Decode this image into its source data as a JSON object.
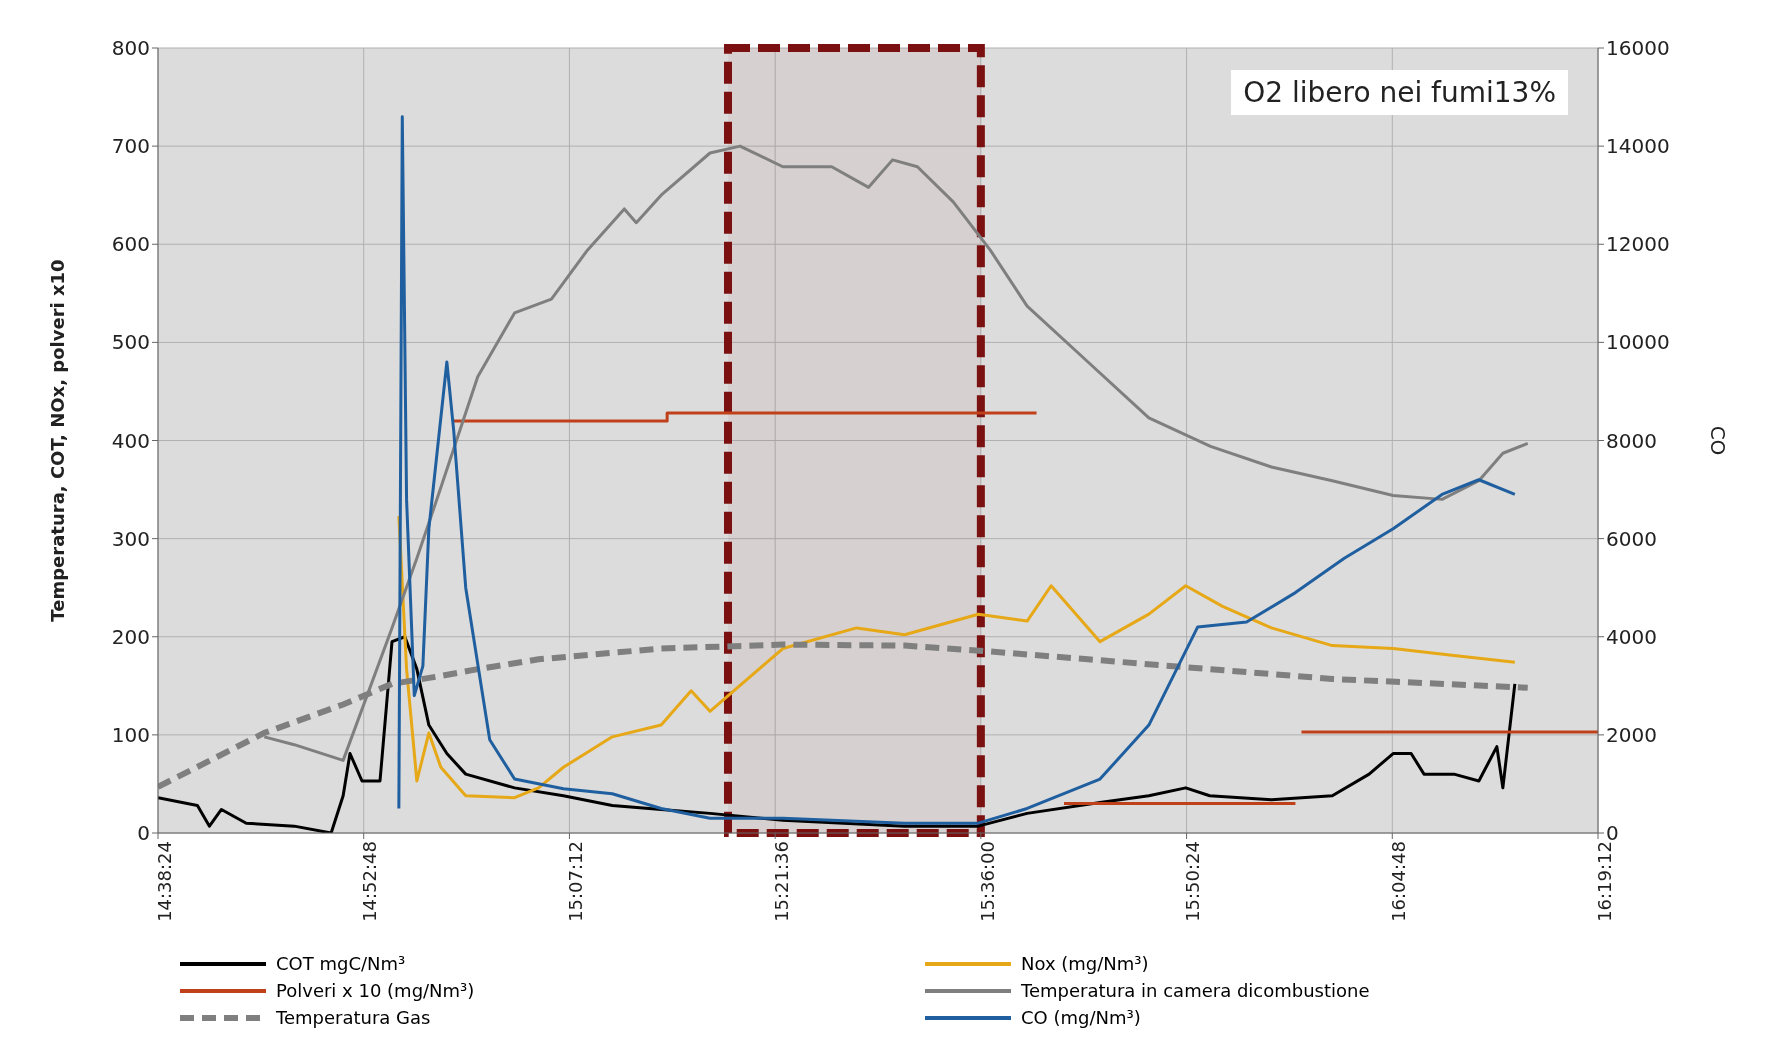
{
  "chart_data": {
    "type": "line",
    "ylabel": "Temperatura, COT, NOx, polveri x10",
    "y2label": "CO",
    "annotations": [
      "O2 libero nei fumi13%"
    ],
    "xlim": [
      14.64,
      16.32
    ],
    "xticks": [
      {
        "value": 14.64,
        "label": "14:38:24"
      },
      {
        "value": 14.88,
        "label": "14:52:48"
      },
      {
        "value": 15.12,
        "label": "15:07:12"
      },
      {
        "value": 15.36,
        "label": "15:21:36"
      },
      {
        "value": 15.6,
        "label": "15:36:00"
      },
      {
        "value": 15.84,
        "label": "15:50:24"
      },
      {
        "value": 16.08,
        "label": "16:04:48"
      },
      {
        "value": 16.32,
        "label": "16:19:12"
      }
    ],
    "ylim": [
      0,
      800
    ],
    "yticks": [
      0,
      100,
      200,
      300,
      400,
      500,
      600,
      700,
      800
    ],
    "y2lim": [
      0,
      16000
    ],
    "y2ticks": [
      0,
      2000,
      4000,
      6000,
      8000,
      10000,
      12000,
      14000,
      16000
    ],
    "grid": true,
    "legend": "bottom",
    "bands": [
      {
        "axis": "x",
        "from": 15.305,
        "to": 15.6,
        "color": "#7b1010"
      }
    ],
    "series": [
      {
        "name": "COT mgC/Nm³",
        "color": "#000000",
        "x": [
          14.64,
          14.686,
          14.7,
          14.714,
          14.743,
          14.799,
          14.842,
          14.856,
          14.864,
          14.878,
          14.899,
          14.913,
          14.928,
          14.942,
          14.956,
          14.977,
          14.999,
          15.056,
          15.113,
          15.17,
          15.227,
          15.284,
          15.369,
          15.511,
          15.597,
          15.654,
          15.739,
          15.796,
          15.839,
          15.867,
          15.939,
          16.01,
          16.053,
          16.081,
          16.102,
          16.117,
          16.152,
          16.181,
          16.202,
          16.209,
          16.223
        ],
        "values": [
          36,
          28,
          7,
          24,
          10,
          7,
          0,
          38,
          81,
          53,
          53,
          195,
          200,
          167,
          110,
          81,
          60,
          46,
          38,
          28,
          24,
          20,
          13,
          7,
          7,
          20,
          31,
          38,
          46,
          38,
          34,
          38,
          60,
          81,
          81,
          60,
          60,
          53,
          88,
          46,
          152
        ]
      },
      {
        "name": "Nox (mg/Nm³)",
        "color": "#e6a817",
        "x": [
          14.921,
          14.93,
          14.942,
          14.956,
          14.97,
          14.999,
          15.056,
          15.084,
          15.113,
          15.17,
          15.227,
          15.262,
          15.284,
          15.369,
          15.455,
          15.511,
          15.597,
          15.654,
          15.682,
          15.739,
          15.796,
          15.839,
          15.882,
          15.939,
          16.01,
          16.081,
          16.152,
          16.223
        ],
        "values": [
          323,
          167,
          53,
          102,
          67,
          38,
          36,
          46,
          67,
          98,
          110,
          145,
          124,
          188,
          209,
          202,
          223,
          216,
          252,
          195,
          223,
          252,
          231,
          209,
          191,
          188,
          181,
          174
        ]
      },
      {
        "name": "Polveri x 10 (mg/Nm³)",
        "color": "#c0401a",
        "x": [
          14.985,
          15.234,
          15.234,
          15.665,
          15.68,
          15.697,
          15.967,
          15.97,
          15.974,
          16.32
        ],
        "values": [
          420,
          420,
          428,
          428,
          null,
          30,
          30,
          null,
          103,
          103
        ]
      },
      {
        "name": "Temperatura in camera dicombustione",
        "color": "#7f7f7f",
        "x": [
          14.764,
          14.799,
          14.856,
          14.913,
          14.942,
          14.97,
          15.013,
          15.056,
          15.099,
          15.141,
          15.184,
          15.198,
          15.227,
          15.284,
          15.319,
          15.369,
          15.426,
          15.469,
          15.497,
          15.526,
          15.568,
          15.611,
          15.654,
          15.725,
          15.796,
          15.868,
          15.939,
          16.01,
          16.081,
          16.138,
          16.181,
          16.209,
          16.238
        ],
        "values": [
          98,
          90,
          74,
          209,
          280,
          352,
          465,
          530,
          544,
          594,
          636,
          622,
          650,
          693,
          700,
          679,
          679,
          658,
          686,
          679,
          643,
          594,
          537,
          480,
          423,
          394,
          373,
          359,
          344,
          340,
          359,
          387,
          397
        ]
      },
      {
        "name": "Temperatura Gas",
        "color": "#7f7f7f",
        "line_style": "dashed",
        "x": [
          14.64,
          14.764,
          14.856,
          14.913,
          14.97,
          15.013,
          15.084,
          15.227,
          15.369,
          15.511,
          15.611,
          15.725,
          15.867,
          16.01,
          16.238
        ],
        "values": [
          47,
          102,
          131,
          152,
          160,
          167,
          177,
          188,
          192,
          191,
          185,
          177,
          167,
          157,
          148
        ]
      },
      {
        "name": "CO (mg/Nm³)",
        "color": "#1f5f9f",
        "axis": "y2",
        "x": [
          14.921,
          14.925,
          14.93,
          14.939,
          14.949,
          14.956,
          14.977,
          14.985,
          14.999,
          15.027,
          15.056,
          15.113,
          15.17,
          15.227,
          15.284,
          15.369,
          15.511,
          15.597,
          15.654,
          15.739,
          15.796,
          15.853,
          15.91,
          15.967,
          16.024,
          16.081,
          16.138,
          16.181,
          16.223
        ],
        "values": [
          500,
          14600,
          6800,
          2800,
          3400,
          6200,
          9600,
          8200,
          5000,
          1900,
          1100,
          900,
          800,
          500,
          300,
          300,
          200,
          200,
          500,
          1100,
          2200,
          4200,
          4300,
          4900,
          5600,
          6200,
          6900,
          7200,
          6900
        ]
      }
    ]
  }
}
